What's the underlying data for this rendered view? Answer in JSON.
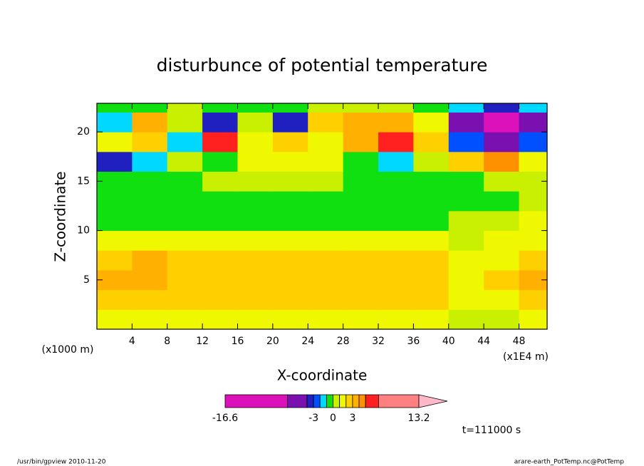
{
  "chart_data": {
    "type": "contour",
    "title": "disturbunce of potential temperature",
    "x_label": "X-coordinate",
    "y_label": "Z-coordinate",
    "x_unit": "(x1000 m)",
    "x_unit2": "(x1E4 m)",
    "x": [
      2,
      6,
      10,
      14,
      18,
      22,
      26,
      30,
      34,
      38,
      42,
      46,
      50
    ],
    "y": [
      1,
      3,
      5,
      7,
      9,
      11,
      13,
      15,
      17,
      19,
      21,
      23
    ],
    "values": [
      [
        1.5,
        1.5,
        1.5,
        1.5,
        1.5,
        1.5,
        1.5,
        1.5,
        1.5,
        1.5,
        0.5,
        0.5,
        1.5
      ],
      [
        2.5,
        2.5,
        2.5,
        2.5,
        2.5,
        2.5,
        2.5,
        2.5,
        2.5,
        2.5,
        1.5,
        1.5,
        2.5
      ],
      [
        3.5,
        3.5,
        2.5,
        2.5,
        2.5,
        2.5,
        2.5,
        2.5,
        2.5,
        2.5,
        1.5,
        2.5,
        3.5
      ],
      [
        2.5,
        3.5,
        2.5,
        2.5,
        2.5,
        2.5,
        2.5,
        2.5,
        2.5,
        2.5,
        1.5,
        1.5,
        2.5
      ],
      [
        1.5,
        1.5,
        1.5,
        1.5,
        1.5,
        1.5,
        1.5,
        1.5,
        1.5,
        1.5,
        0.5,
        1.5,
        1.5
      ],
      [
        -0.5,
        -0.5,
        -0.5,
        -0.5,
        -0.5,
        -0.5,
        -0.5,
        -0.5,
        -0.5,
        -0.5,
        0.5,
        0.5,
        1.5
      ],
      [
        -0.5,
        -0.5,
        -0.5,
        -0.5,
        -0.5,
        -0.5,
        -0.5,
        -0.5,
        -0.5,
        -0.5,
        -0.5,
        -0.5,
        0.5
      ],
      [
        -0.5,
        -0.5,
        -0.5,
        0.5,
        0.5,
        0.5,
        0.5,
        -0.5,
        -0.5,
        -0.5,
        -0.5,
        0.5,
        0.5
      ],
      [
        -3.5,
        -1.5,
        0.5,
        -0.5,
        1.5,
        1.5,
        1.5,
        -0.5,
        -1.5,
        0.5,
        2.5,
        4.5,
        1.5
      ],
      [
        1.5,
        2.5,
        -1.5,
        5.5,
        1.5,
        2.5,
        1.5,
        3.5,
        6,
        2.5,
        -2.5,
        -6,
        -2.5
      ],
      [
        -1.5,
        3.5,
        0.5,
        -3.5,
        0.5,
        -3.5,
        2.5,
        3.5,
        3.5,
        1.5,
        -5,
        -9,
        -5
      ],
      [
        -0.5,
        -0.5,
        0.5,
        -0.5,
        -0.5,
        -0.5,
        0.5,
        0.5,
        0.5,
        -0.5,
        -1.5,
        -3.5,
        -1.5
      ]
    ],
    "xlim": [
      0,
      51.2
    ],
    "ylim": [
      0,
      22.9
    ],
    "xticks": [
      4,
      8,
      12,
      16,
      20,
      24,
      28,
      32,
      36,
      40,
      44,
      48
    ],
    "yticks": [
      5,
      10,
      15,
      20
    ],
    "levels": [
      -16.6,
      -7,
      -4,
      -3,
      -2,
      -1,
      0,
      1,
      2,
      3,
      4,
      5,
      7,
      13.2
    ],
    "level_colors": [
      "#dd11bb",
      "#7a10b0",
      "#2020c0",
      "#0050ff",
      "#00d8ff",
      "#10e010",
      "#c8f000",
      "#f0f800",
      "#ffd000",
      "#ffb000",
      "#ff9000",
      "#ff2020",
      "#ff8080"
    ],
    "over_color": "#ffb8c8",
    "colorbar_ticks": [
      -16.6,
      -3,
      0,
      3,
      13.2
    ],
    "time_label": "t=111000 s",
    "footer_left": "/usr/bin/gpview   2010-11-20",
    "footer_right": "arare-earth_PotTemp.nc@PotTemp"
  }
}
